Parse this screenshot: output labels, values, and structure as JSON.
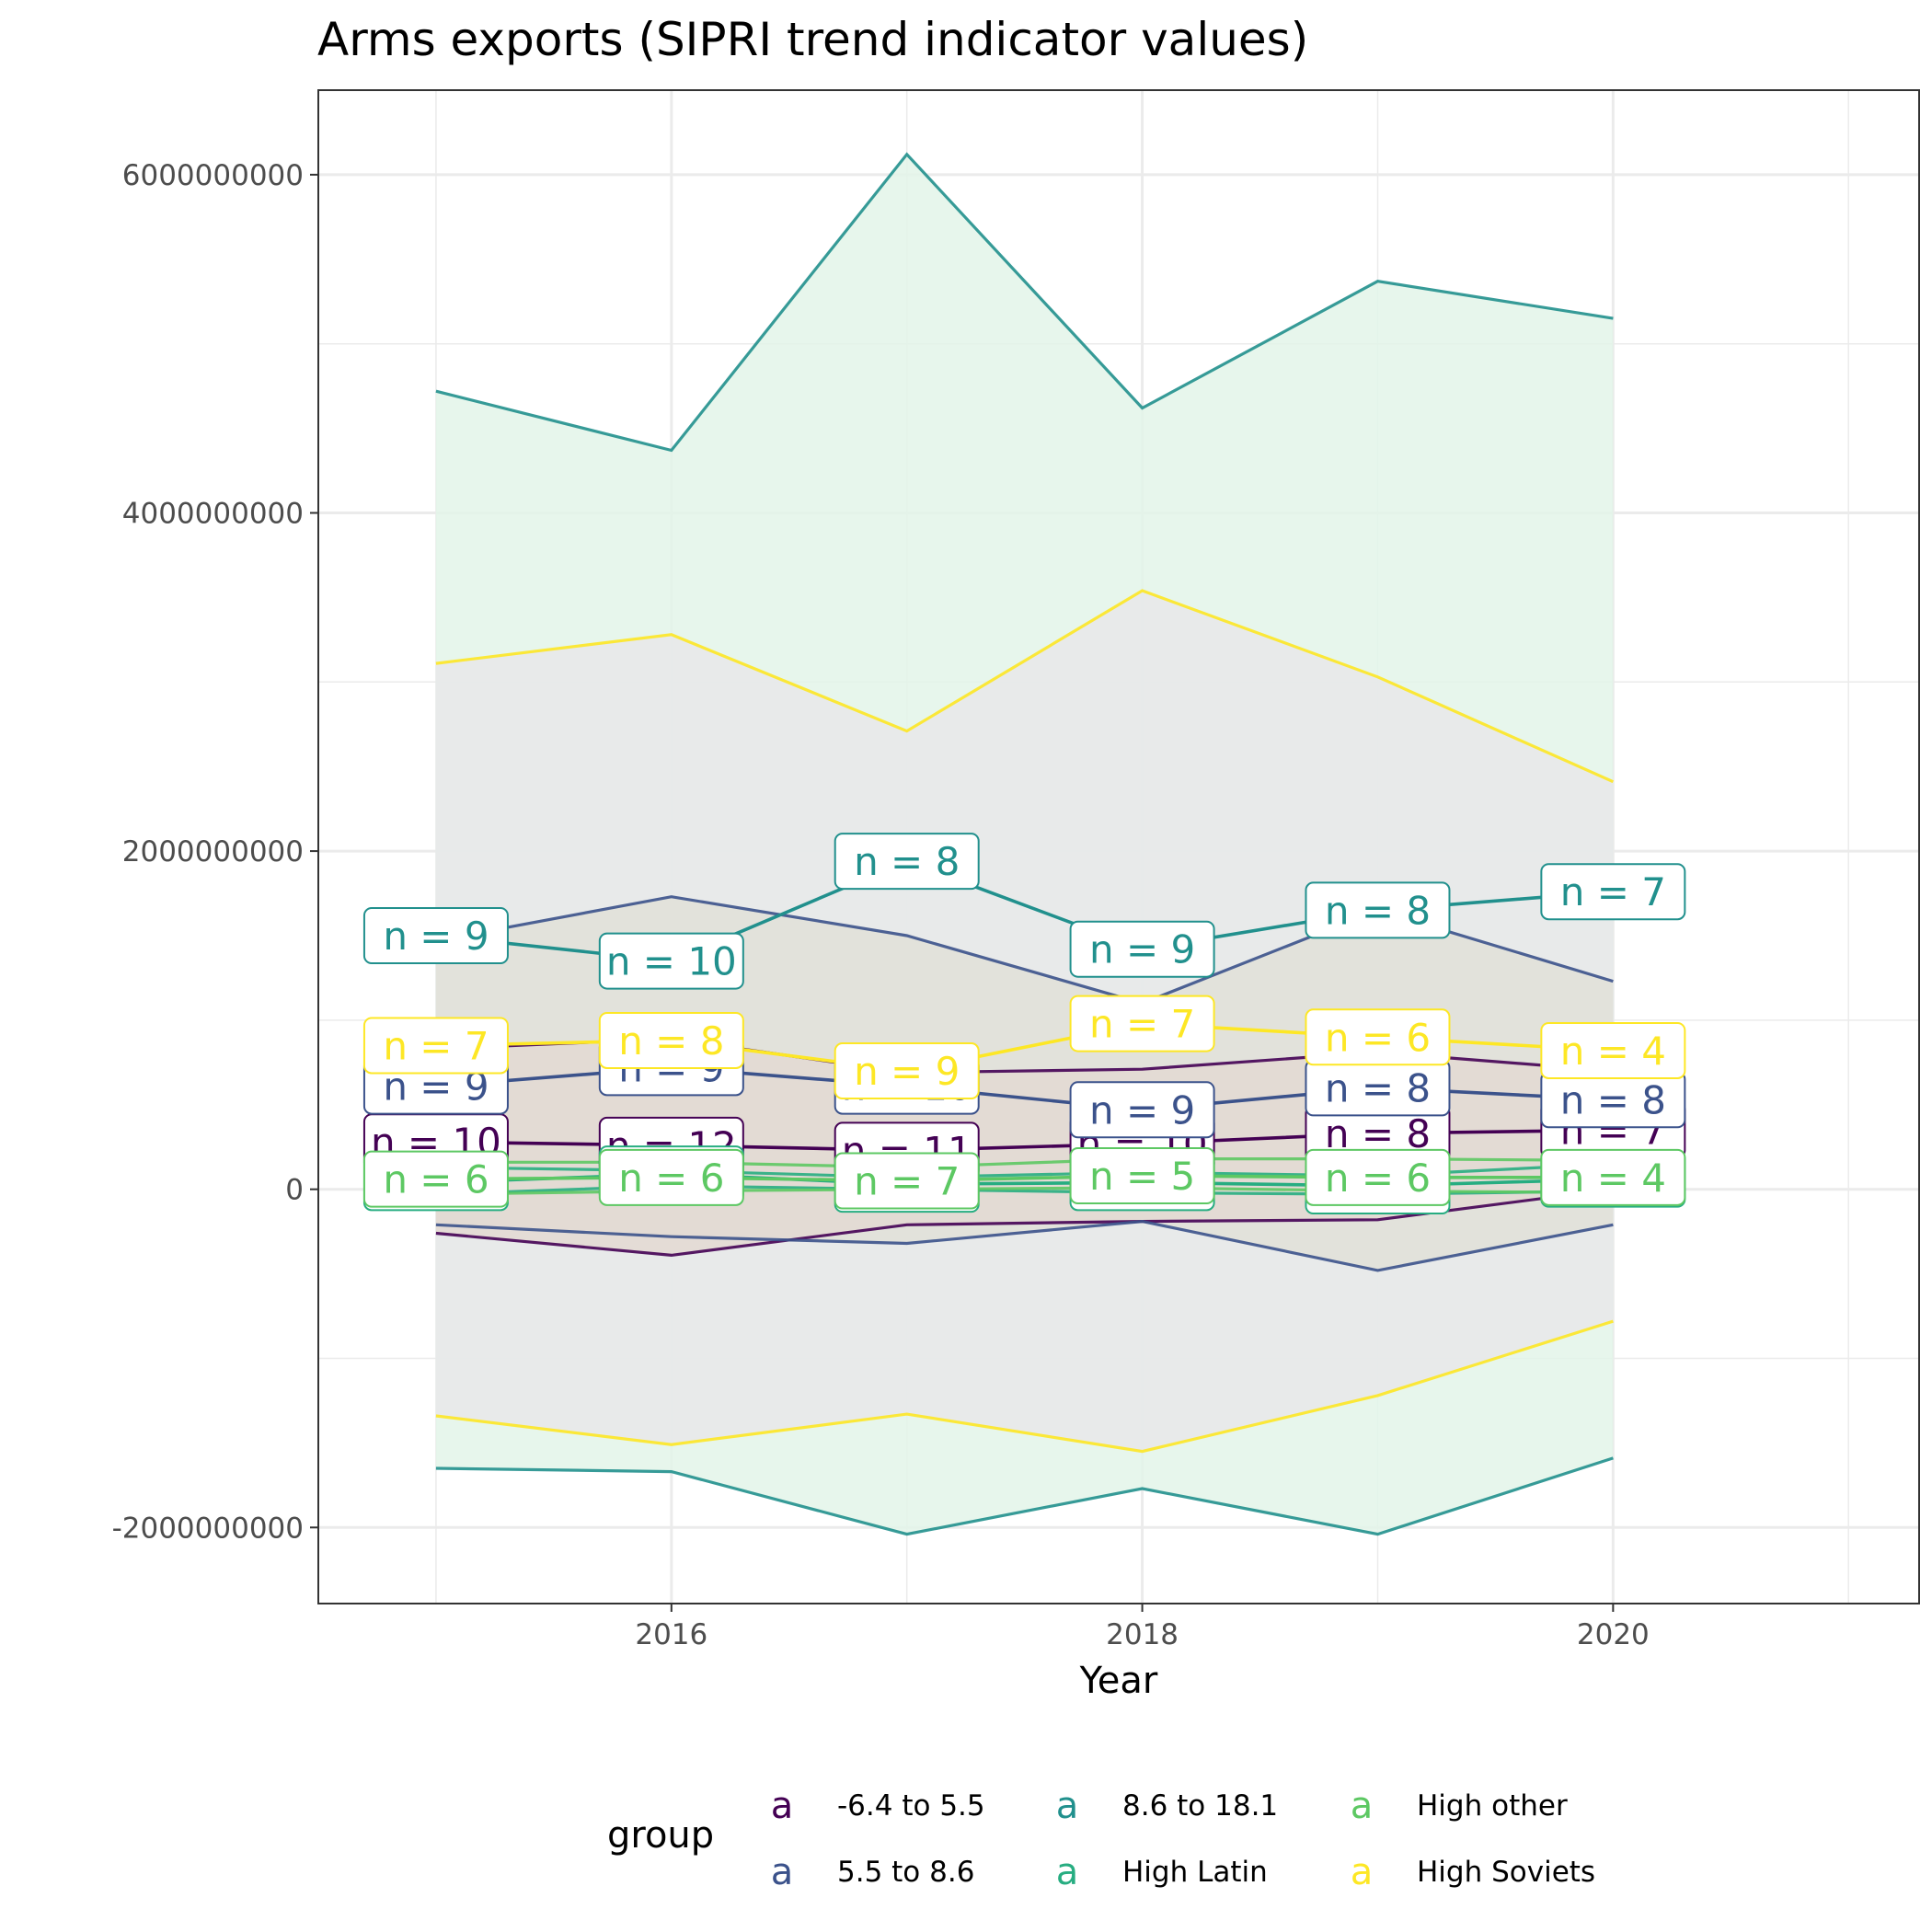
{
  "chart_data": {
    "type": "line",
    "title": "Arms exports (SIPRI trend indicator values)",
    "xlabel": "Year",
    "ylabel": "",
    "x": [
      2015,
      2016,
      2017,
      2018,
      2019,
      2020
    ],
    "xlim": [
      2014.5,
      2021.3
    ],
    "ylim": [
      -2450000000,
      6500000000
    ],
    "x_ticks": [
      2016,
      2018,
      2020
    ],
    "x_tick_labels": [
      "2016",
      "2018",
      "2020"
    ],
    "y_ticks": [
      -2000000000,
      0,
      2000000000,
      4000000000,
      6000000000
    ],
    "y_tick_labels": [
      "-2000000000",
      "0",
      "2000000000",
      "4000000000",
      "6000000000"
    ],
    "grid": true,
    "legend": {
      "title": "group",
      "position": "bottom",
      "key_glyph": "a",
      "entries": [
        "-6.4 to 5.5",
        "5.5 to 8.6",
        "8.6 to 18.1",
        "High Latin",
        "High other",
        "High Soviets"
      ]
    },
    "bands": [
      {
        "series": "8.6 to 18.1",
        "fill": "#e3f5e9"
      },
      {
        "series": "High Soviets",
        "fill": "#e7e8ea"
      },
      {
        "series": "5.5 to 8.6",
        "fill": "#e1e0d8"
      },
      {
        "series": "-6.4 to 5.5",
        "fill": "#e3d9d2"
      }
    ],
    "series": [
      {
        "name": "-6.4 to 5.5",
        "color": "#440154",
        "mean": [
          280000000,
          260000000,
          230000000,
          270000000,
          330000000,
          350000000
        ],
        "upper": [
          830000000,
          890000000,
          690000000,
          710000000,
          810000000,
          700000000
        ],
        "lower": [
          -260000000,
          -390000000,
          -210000000,
          -190000000,
          -180000000,
          0
        ],
        "n": [
          "n = 10",
          "n = 12",
          "n = 11",
          "n = 10",
          "n = 8",
          "n = 7"
        ]
      },
      {
        "name": "5.5 to 8.6",
        "color": "#3b528b",
        "mean": [
          610000000,
          720000000,
          610000000,
          470000000,
          600000000,
          530000000
        ],
        "upper": [
          1470000000,
          1730000000,
          1500000000,
          1100000000,
          1650000000,
          1230000000
        ],
        "lower": [
          -210000000,
          -280000000,
          -320000000,
          -190000000,
          -480000000,
          -210000000
        ],
        "n": [
          "n = 9",
          "n = 9",
          "n = 10",
          "n = 9",
          "n = 8",
          "n = 8"
        ]
      },
      {
        "name": "8.6 to 18.1",
        "color": "#21908d",
        "mean": [
          1500000000,
          1350000000,
          1940000000,
          1420000000,
          1650000000,
          1760000000
        ],
        "upper": [
          4720000000,
          4370000000,
          6120000000,
          4620000000,
          5370000000,
          5150000000
        ],
        "lower": [
          -1650000000,
          -1670000000,
          -2040000000,
          -1770000000,
          -2040000000,
          -1590000000
        ],
        "n": [
          "n = 9",
          "n = 10",
          "n = 8",
          "n = 9",
          "n = 8",
          "n = 7"
        ]
      },
      {
        "name": "High Latin",
        "color": "#27ad81",
        "mean": [
          40000000,
          90000000,
          30000000,
          40000000,
          20000000,
          60000000
        ],
        "upper": [
          130000000,
          110000000,
          70000000,
          100000000,
          80000000,
          150000000
        ],
        "lower": [
          -30000000,
          20000000,
          0,
          -20000000,
          -30000000,
          -10000000
        ],
        "n": [
          "n = 6",
          "n = 6",
          "n = 7",
          "n = 5",
          "n = 6",
          "n = 4"
        ]
      },
      {
        "name": "High other",
        "color": "#5dc863",
        "mean": [
          60000000,
          70000000,
          50000000,
          80000000,
          70000000,
          70000000
        ],
        "upper": [
          160000000,
          160000000,
          130000000,
          180000000,
          180000000,
          170000000
        ],
        "lower": [
          -30000000,
          -10000000,
          0,
          10000000,
          -10000000,
          -20000000
        ],
        "n": [
          "n = 6",
          "n = 6",
          "n = 7",
          "n = 5",
          "n = 6",
          "n = 4"
        ]
      },
      {
        "name": "High Soviets",
        "color": "#fde725",
        "mean": [
          850000000,
          880000000,
          700000000,
          980000000,
          900000000,
          820000000
        ],
        "upper": [
          3110000000,
          3280000000,
          2710000000,
          3540000000,
          3030000000,
          2410000000
        ],
        "lower": [
          -1340000000,
          -1510000000,
          -1330000000,
          -1550000000,
          -1220000000,
          -780000000
        ],
        "n": [
          "n = 7",
          "n = 8",
          "n = 9",
          "n = 7",
          "n = 6",
          "n = 4"
        ]
      }
    ]
  }
}
